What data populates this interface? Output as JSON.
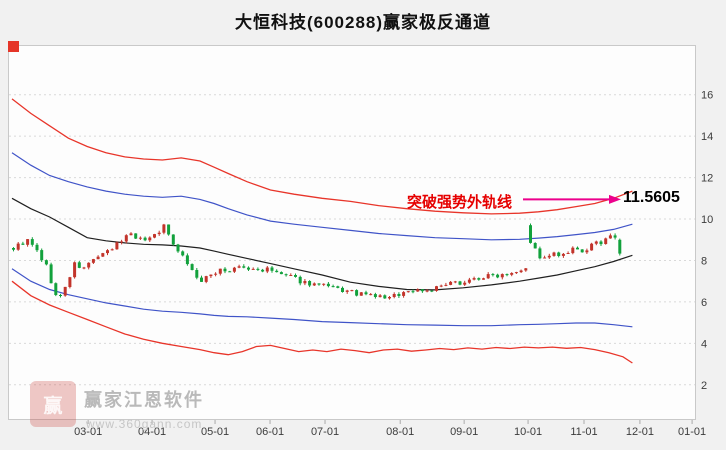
{
  "title": "大恒科技(600288)赢家极反通道",
  "annotation": {
    "text": "突破强势外轨线",
    "price_label": "11.5605",
    "text_color": "#e60000",
    "arrow_color": "#ec008c"
  },
  "watermark": {
    "brand": "赢家江恩软件",
    "url": "www.360gann.com",
    "logo_text": "赢"
  },
  "chart_data": {
    "type": "candlestick",
    "title": "大恒科技(600288)赢家极反通道",
    "xlabel": "",
    "ylabel": "",
    "marked_value": 11.5605,
    "ylim": [
      0.3,
      18.4
    ],
    "yticks": [
      2,
      4,
      6,
      8,
      10,
      12,
      14,
      16
    ],
    "grid": "horizontal-dashed",
    "xticks": [
      {
        "label": "03-01",
        "i": 16.2
      },
      {
        "label": "04-01",
        "i": 29.8
      },
      {
        "label": "05-01",
        "i": 43.2
      },
      {
        "label": "06-01",
        "i": 54.9
      },
      {
        "label": "07-01",
        "i": 66.6
      },
      {
        "label": "08-01",
        "i": 82.6
      },
      {
        "label": "09-01",
        "i": 96.2
      },
      {
        "label": "10-01",
        "i": 109.8
      },
      {
        "label": "11-01",
        "i": 121.7
      },
      {
        "label": "12-01",
        "i": 133.6
      },
      {
        "label": "01-01",
        "i": 144.7
      }
    ],
    "num_candles": 130,
    "close_keyframes": [
      [
        0,
        8.6
      ],
      [
        2,
        8.85
      ],
      [
        3,
        8.95
      ],
      [
        5,
        8.45
      ],
      [
        7,
        7.7
      ],
      [
        8,
        7.0
      ],
      [
        9,
        6.3
      ],
      [
        10,
        6.25
      ],
      [
        11,
        6.7
      ],
      [
        13,
        7.8
      ],
      [
        15,
        7.6
      ],
      [
        17,
        8.1
      ],
      [
        19,
        8.25
      ],
      [
        21,
        8.55
      ],
      [
        23,
        9.0
      ],
      [
        25,
        9.35
      ],
      [
        27,
        9.0
      ],
      [
        29,
        9.1
      ],
      [
        31,
        9.45
      ],
      [
        32,
        9.65
      ],
      [
        33,
        9.2
      ],
      [
        34,
        8.85
      ],
      [
        36,
        8.25
      ],
      [
        38,
        7.5
      ],
      [
        40,
        6.95
      ],
      [
        42,
        7.3
      ],
      [
        44,
        7.6
      ],
      [
        46,
        7.45
      ],
      [
        48,
        7.7
      ],
      [
        50,
        7.55
      ],
      [
        54,
        7.55
      ],
      [
        58,
        7.25
      ],
      [
        62,
        6.95
      ],
      [
        66,
        6.75
      ],
      [
        70,
        6.55
      ],
      [
        74,
        6.35
      ],
      [
        78,
        6.25
      ],
      [
        80,
        6.18
      ],
      [
        82,
        6.4
      ],
      [
        86,
        6.6
      ],
      [
        88,
        6.55
      ],
      [
        92,
        6.8
      ],
      [
        96,
        7.0
      ],
      [
        100,
        7.2
      ],
      [
        104,
        7.35
      ],
      [
        108,
        7.6
      ],
      [
        109,
        7.7
      ],
      [
        110,
        8.9
      ],
      [
        111,
        8.5
      ],
      [
        112,
        8.2
      ],
      [
        113,
        8.05
      ],
      [
        115,
        8.3
      ],
      [
        117,
        8.2
      ],
      [
        119,
        8.5
      ],
      [
        121,
        8.4
      ],
      [
        123,
        8.7
      ],
      [
        125,
        8.9
      ],
      [
        126,
        9.1
      ],
      [
        127,
        9.25
      ],
      [
        128,
        9.0
      ],
      [
        129,
        8.35
      ]
    ],
    "open_overrides": {
      "110": 9.7,
      "129": 9.0
    },
    "noise": {
      "seed": 9,
      "close_amp": 0.13,
      "shadow_amp": 0.1
    },
    "bands": {
      "upper_outer": [
        [
          0,
          15.8
        ],
        [
          4,
          15.1
        ],
        [
          8,
          14.5
        ],
        [
          12,
          13.9
        ],
        [
          16,
          13.5
        ],
        [
          20,
          13.2
        ],
        [
          24,
          13.0
        ],
        [
          28,
          12.9
        ],
        [
          32,
          12.85
        ],
        [
          36,
          12.95
        ],
        [
          40,
          12.8
        ],
        [
          43,
          12.5
        ],
        [
          46,
          12.2
        ],
        [
          50,
          11.8
        ],
        [
          55,
          11.4
        ],
        [
          60,
          11.2
        ],
        [
          66,
          11.0
        ],
        [
          72,
          10.85
        ],
        [
          78,
          10.65
        ],
        [
          84,
          10.5
        ],
        [
          90,
          10.38
        ],
        [
          96,
          10.3
        ],
        [
          102,
          10.25
        ],
        [
          108,
          10.28
        ],
        [
          112,
          10.35
        ],
        [
          116,
          10.45
        ],
        [
          120,
          10.6
        ],
        [
          124,
          10.75
        ],
        [
          128,
          11.0
        ],
        [
          132,
          11.35
        ]
      ],
      "upper_inner": [
        [
          0,
          13.2
        ],
        [
          4,
          12.6
        ],
        [
          8,
          12.1
        ],
        [
          12,
          11.8
        ],
        [
          16,
          11.55
        ],
        [
          20,
          11.35
        ],
        [
          24,
          11.2
        ],
        [
          28,
          11.1
        ],
        [
          32,
          11.05
        ],
        [
          36,
          11.1
        ],
        [
          40,
          10.95
        ],
        [
          43,
          10.75
        ],
        [
          46,
          10.5
        ],
        [
          50,
          10.2
        ],
        [
          55,
          9.9
        ],
        [
          60,
          9.75
        ],
        [
          66,
          9.6
        ],
        [
          72,
          9.45
        ],
        [
          78,
          9.3
        ],
        [
          84,
          9.2
        ],
        [
          90,
          9.1
        ],
        [
          96,
          9.05
        ],
        [
          102,
          9.0
        ],
        [
          108,
          9.02
        ],
        [
          112,
          9.08
        ],
        [
          116,
          9.15
        ],
        [
          120,
          9.25
        ],
        [
          124,
          9.35
        ],
        [
          128,
          9.5
        ],
        [
          132,
          9.75
        ]
      ],
      "middle": [
        [
          0,
          11.0
        ],
        [
          4,
          10.5
        ],
        [
          8,
          10.1
        ],
        [
          12,
          9.6
        ],
        [
          16,
          9.1
        ],
        [
          20,
          8.95
        ],
        [
          24,
          8.85
        ],
        [
          28,
          8.78
        ],
        [
          32,
          8.75
        ],
        [
          36,
          8.7
        ],
        [
          40,
          8.6
        ],
        [
          43,
          8.45
        ],
        [
          46,
          8.3
        ],
        [
          50,
          8.1
        ],
        [
          55,
          7.85
        ],
        [
          60,
          7.6
        ],
        [
          66,
          7.3
        ],
        [
          72,
          6.95
        ],
        [
          78,
          6.75
        ],
        [
          84,
          6.6
        ],
        [
          90,
          6.58
        ],
        [
          96,
          6.68
        ],
        [
          102,
          6.82
        ],
        [
          108,
          7.0
        ],
        [
          112,
          7.15
        ],
        [
          116,
          7.3
        ],
        [
          120,
          7.5
        ],
        [
          124,
          7.7
        ],
        [
          128,
          7.95
        ],
        [
          132,
          8.25
        ]
      ],
      "lower_inner": [
        [
          0,
          7.6
        ],
        [
          4,
          7.0
        ],
        [
          8,
          6.6
        ],
        [
          12,
          6.35
        ],
        [
          16,
          6.15
        ],
        [
          20,
          5.95
        ],
        [
          24,
          5.8
        ],
        [
          28,
          5.65
        ],
        [
          32,
          5.55
        ],
        [
          36,
          5.5
        ],
        [
          40,
          5.42
        ],
        [
          43,
          5.35
        ],
        [
          46,
          5.3
        ],
        [
          50,
          5.28
        ],
        [
          55,
          5.22
        ],
        [
          60,
          5.15
        ],
        [
          66,
          5.05
        ],
        [
          72,
          5.0
        ],
        [
          78,
          4.95
        ],
        [
          84,
          4.9
        ],
        [
          90,
          4.88
        ],
        [
          96,
          4.85
        ],
        [
          102,
          4.85
        ],
        [
          108,
          4.9
        ],
        [
          112,
          4.92
        ],
        [
          116,
          4.95
        ],
        [
          120,
          4.98
        ],
        [
          124,
          4.98
        ],
        [
          128,
          4.9
        ],
        [
          132,
          4.8
        ]
      ],
      "lower_outer": [
        [
          0,
          7.0
        ],
        [
          4,
          6.3
        ],
        [
          8,
          5.85
        ],
        [
          12,
          5.5
        ],
        [
          16,
          5.15
        ],
        [
          20,
          4.8
        ],
        [
          24,
          4.45
        ],
        [
          28,
          4.2
        ],
        [
          32,
          4.0
        ],
        [
          36,
          3.85
        ],
        [
          40,
          3.7
        ],
        [
          43,
          3.55
        ],
        [
          46,
          3.45
        ],
        [
          49,
          3.6
        ],
        [
          52,
          3.85
        ],
        [
          55,
          3.9
        ],
        [
          58,
          3.75
        ],
        [
          61,
          3.6
        ],
        [
          64,
          3.68
        ],
        [
          67,
          3.6
        ],
        [
          70,
          3.72
        ],
        [
          73,
          3.65
        ],
        [
          76,
          3.55
        ],
        [
          79,
          3.68
        ],
        [
          82,
          3.72
        ],
        [
          85,
          3.62
        ],
        [
          88,
          3.68
        ],
        [
          91,
          3.75
        ],
        [
          94,
          3.7
        ],
        [
          97,
          3.78
        ],
        [
          100,
          3.72
        ],
        [
          103,
          3.8
        ],
        [
          106,
          3.75
        ],
        [
          109,
          3.82
        ],
        [
          112,
          3.78
        ],
        [
          115,
          3.82
        ],
        [
          118,
          3.76
        ],
        [
          121,
          3.8
        ],
        [
          124,
          3.7
        ],
        [
          127,
          3.55
        ],
        [
          130,
          3.35
        ],
        [
          132,
          3.05
        ]
      ]
    },
    "colors": {
      "up": "#c2342b",
      "down": "#12a13c",
      "outer_band": "#e8352a",
      "inner_band": "#4054c8",
      "mid_band": "#202020",
      "grid": "#d9d9d9",
      "axis_text": "#3c3c3c",
      "frame": "#c9c9c9",
      "plot_bg": "#fdfdfd"
    }
  }
}
